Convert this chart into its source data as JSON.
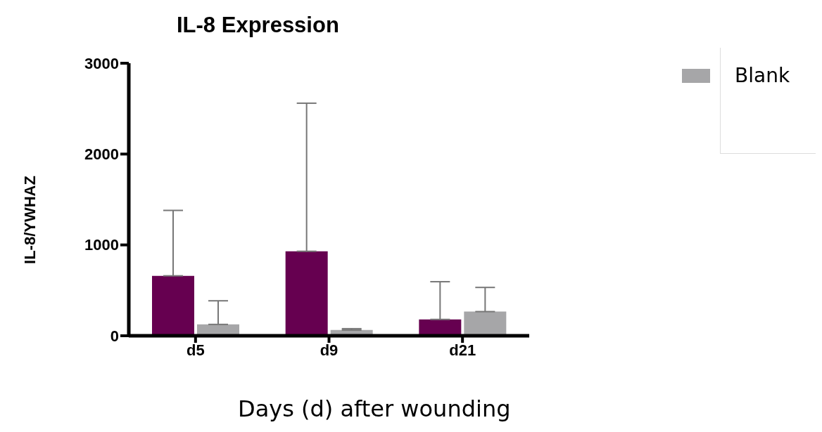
{
  "chart_data": {
    "type": "bar",
    "title": "IL-8 Expression",
    "xlabel": "Days (d) after wounding",
    "ylabel": "IL-8/YWHAZ",
    "categories": [
      "d5",
      "d9",
      "d21"
    ],
    "series": [
      {
        "color": "#660050",
        "values": [
          660,
          930,
          180
        ],
        "errors": [
          [
            660,
            1380
          ],
          [
            930,
            2560
          ],
          [
            180,
            595
          ]
        ]
      },
      {
        "name": "Blank",
        "color": "#a6a6a8",
        "values": [
          125,
          63,
          266
        ],
        "errors": [
          [
            125,
            385
          ],
          [
            63,
            78
          ],
          [
            266,
            532
          ]
        ]
      }
    ],
    "ylim": [
      0,
      3000
    ],
    "yticks": [
      0,
      1000,
      2000,
      3000
    ],
    "grid": false,
    "legend": "top right"
  }
}
